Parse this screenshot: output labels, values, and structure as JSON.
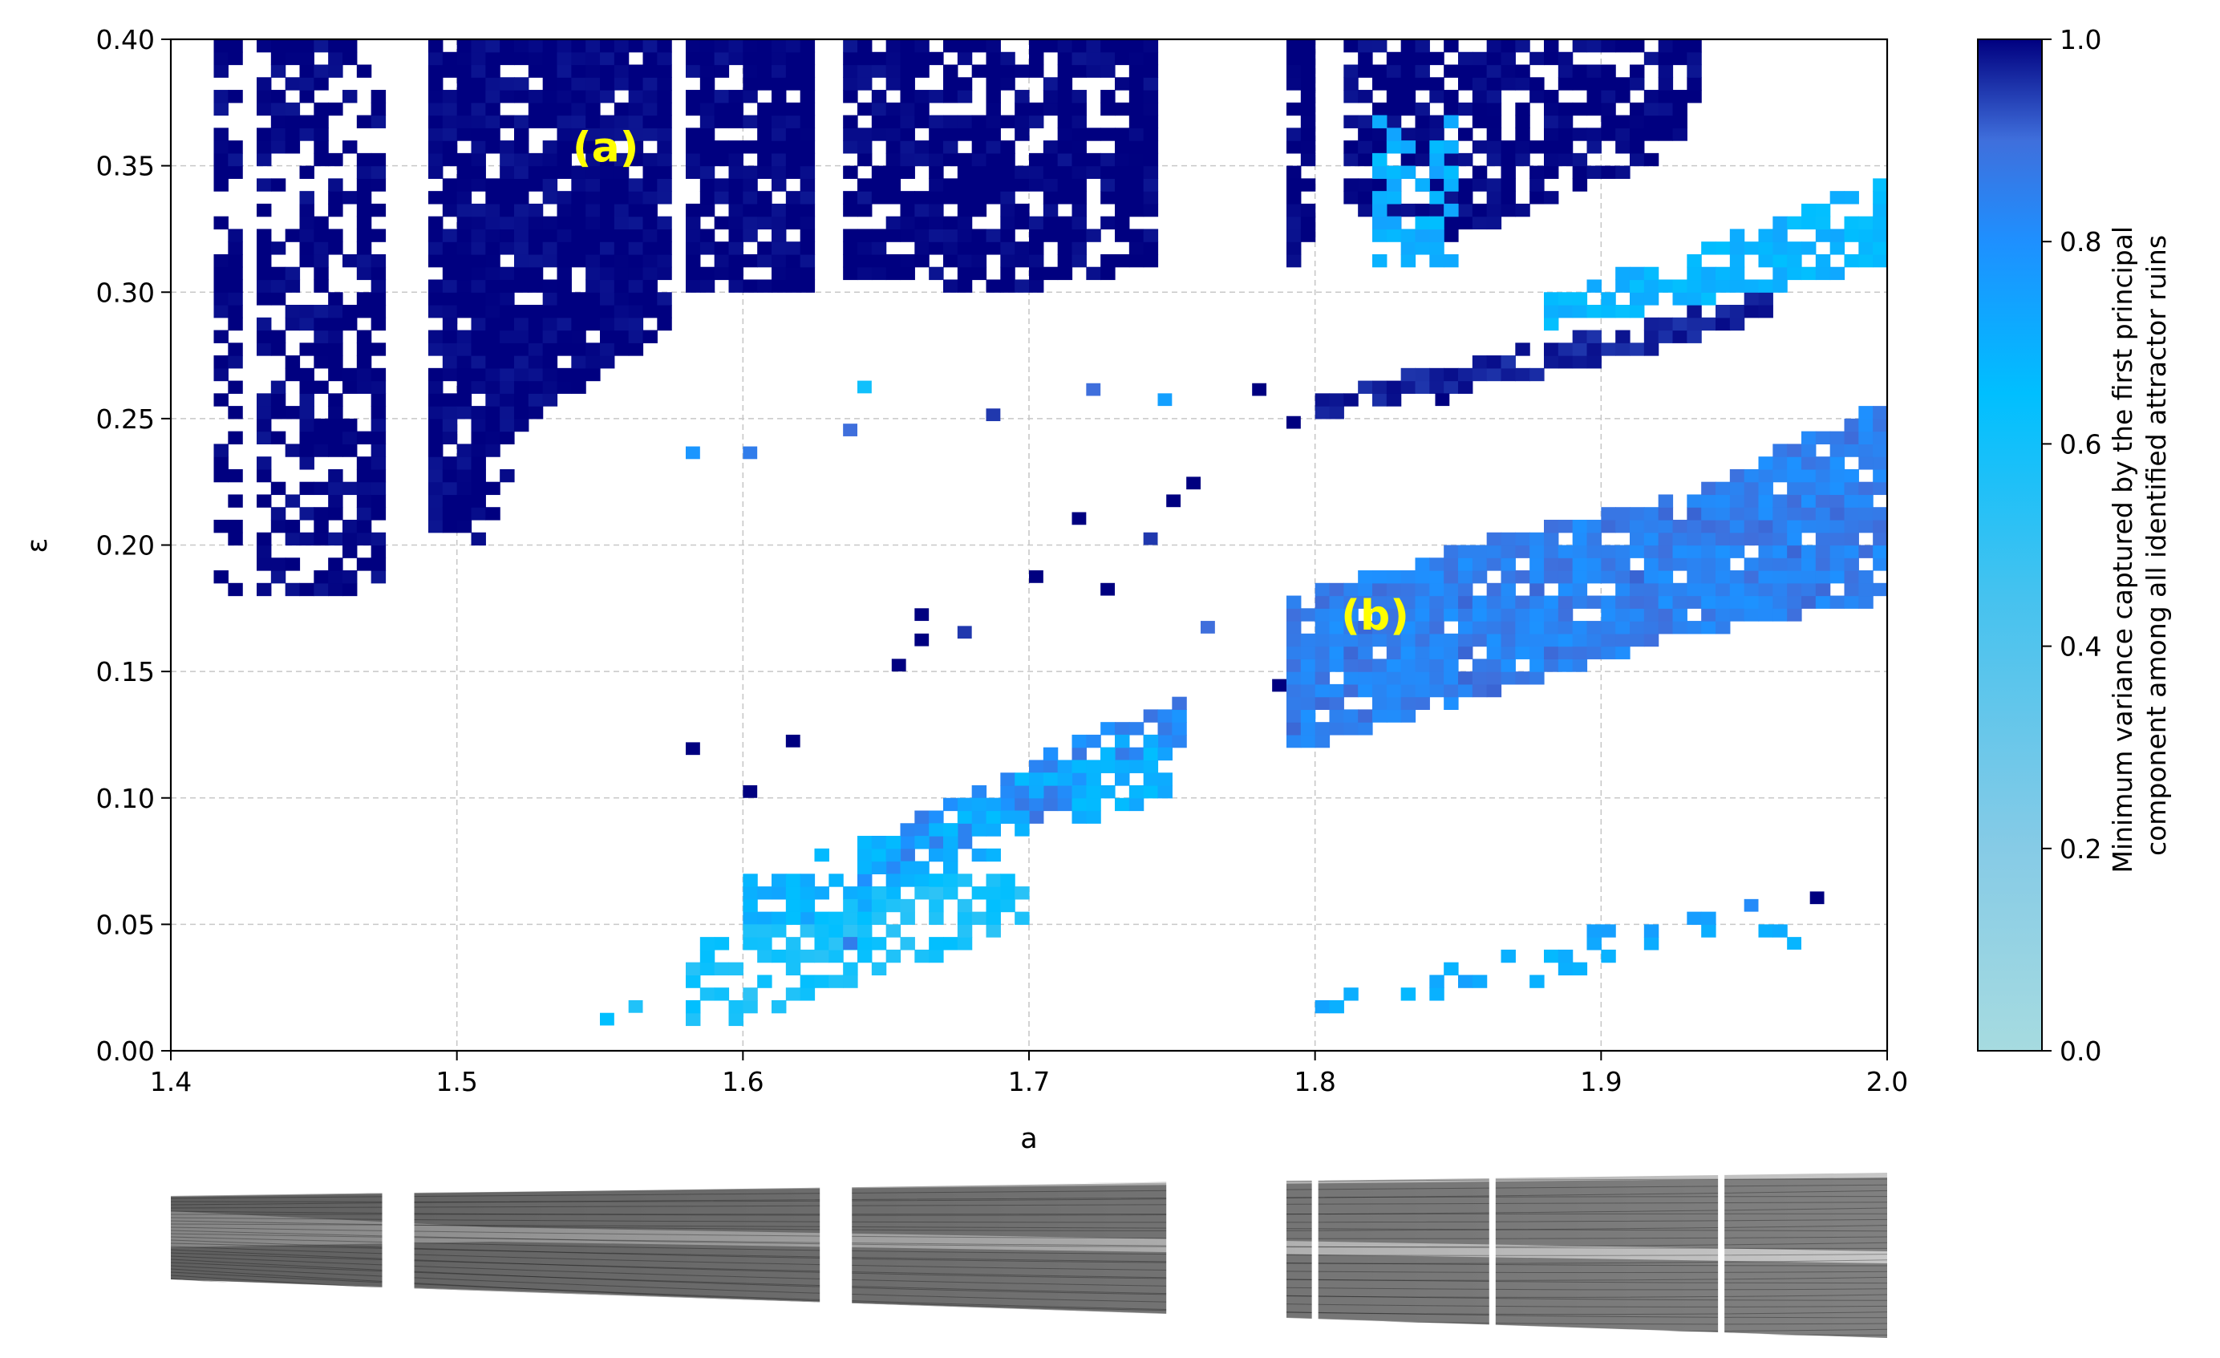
{
  "chart_data": [
    {
      "type": "heatmap",
      "title": "",
      "xlabel": "a",
      "ylabel": "ε",
      "xlim": [
        1.4,
        2.0
      ],
      "ylim": [
        0.0,
        0.4
      ],
      "xticks": [
        "1.4",
        "1.5",
        "1.6",
        "1.7",
        "1.8",
        "1.9",
        "2.0"
      ],
      "yticks": [
        "0.00",
        "0.05",
        "0.10",
        "0.15",
        "0.20",
        "0.25",
        "0.30",
        "0.35",
        "0.40"
      ],
      "grid": true,
      "grid_spacing": {
        "x": 0.1,
        "y": 0.05
      },
      "cell_size": {
        "da": 0.005,
        "de": 0.005
      },
      "value_range": [
        0.0,
        1.0
      ],
      "colormap": [
        "#a6dbe0",
        "#60c7ec",
        "#00bfff",
        "#1e90ff",
        "#3f6fdc",
        "#000080"
      ],
      "colorbar": {
        "label_line1": "Minimum variance captured by the first principal",
        "label_line2": "component among all identified attractor ruins",
        "ticks": [
          "0.0",
          "0.2",
          "0.4",
          "0.6",
          "0.8",
          "1.0"
        ],
        "placement": "right"
      },
      "annotations": [
        {
          "text": "(a)",
          "a": 1.552,
          "eps": 0.356,
          "color": "#ffff00"
        },
        {
          "text": "(b)",
          "a": 1.821,
          "eps": 0.171,
          "color": "#ffff00"
        }
      ],
      "regions": [
        {
          "name": "dark-stripe-1",
          "value": 1.0,
          "poly": [
            [
              1.415,
              0.4
            ],
            [
              1.425,
              0.4
            ],
            [
              1.425,
              0.18
            ],
            [
              1.415,
              0.18
            ]
          ],
          "density": 0.6
        },
        {
          "name": "dark-stripe-2",
          "value": 1.0,
          "poly": [
            [
              1.43,
              0.4
            ],
            [
              1.475,
              0.4
            ],
            [
              1.475,
              0.18
            ],
            [
              1.43,
              0.18
            ]
          ],
          "density": 0.62
        },
        {
          "name": "dark-block-3",
          "value": 1.0,
          "poly": [
            [
              1.49,
              0.4
            ],
            [
              1.575,
              0.4
            ],
            [
              1.575,
              0.285
            ],
            [
              1.525,
              0.25
            ],
            [
              1.51,
              0.2
            ],
            [
              1.49,
              0.2
            ]
          ],
          "density": 0.88
        },
        {
          "name": "dark-block-4",
          "value": 1.0,
          "poly": [
            [
              1.58,
              0.4
            ],
            [
              1.625,
              0.4
            ],
            [
              1.625,
              0.3
            ],
            [
              1.58,
              0.3
            ]
          ],
          "density": 0.85
        },
        {
          "name": "dark-block-5",
          "value": 1.0,
          "poly": [
            [
              1.635,
              0.4
            ],
            [
              1.745,
              0.4
            ],
            [
              1.745,
              0.31
            ],
            [
              1.7,
              0.3
            ],
            [
              1.635,
              0.305
            ]
          ],
          "density": 0.8
        },
        {
          "name": "dark-stripe-6",
          "value": 1.0,
          "poly": [
            [
              1.79,
              0.4
            ],
            [
              1.8,
              0.4
            ],
            [
              1.8,
              0.31
            ],
            [
              1.79,
              0.31
            ]
          ],
          "density": 0.75
        },
        {
          "name": "dark-block-7",
          "value": 1.0,
          "poly": [
            [
              1.81,
              0.4
            ],
            [
              1.935,
              0.4
            ],
            [
              1.935,
              0.36
            ],
            [
              1.85,
              0.32
            ],
            [
              1.81,
              0.33
            ]
          ],
          "density": 0.7
        },
        {
          "name": "dark-diagonal-8",
          "value": 0.97,
          "poly": [
            [
              1.8,
              0.26
            ],
            [
              1.9,
              0.285
            ],
            [
              1.96,
              0.3
            ],
            [
              1.96,
              0.29
            ],
            [
              1.9,
              0.272
            ],
            [
              1.8,
              0.25
            ]
          ],
          "density": 0.85
        },
        {
          "name": "blue-band-b",
          "value": 0.84,
          "poly": [
            [
              1.79,
              0.18
            ],
            [
              1.85,
              0.2
            ],
            [
              1.93,
              0.22
            ],
            [
              2.0,
              0.258
            ],
            [
              2.0,
              0.178
            ],
            [
              1.93,
              0.165
            ],
            [
              1.86,
              0.14
            ],
            [
              1.79,
              0.118
            ]
          ],
          "density": 0.92
        },
        {
          "name": "cyan-band",
          "value": 0.6,
          "poly": [
            [
              1.88,
              0.3
            ],
            [
              1.94,
              0.32
            ],
            [
              2.0,
              0.345
            ],
            [
              2.0,
              0.31
            ],
            [
              1.95,
              0.3
            ],
            [
              1.88,
              0.285
            ]
          ],
          "density": 0.75
        },
        {
          "name": "cyan-cluster-top",
          "value": 0.62,
          "poly": [
            [
              1.82,
              0.37
            ],
            [
              1.85,
              0.37
            ],
            [
              1.85,
              0.31
            ],
            [
              1.82,
              0.31
            ]
          ],
          "density": 0.55
        },
        {
          "name": "blue-diagonal-mid",
          "value": 0.82,
          "poly": [
            [
              1.64,
              0.08
            ],
            [
              1.72,
              0.125
            ],
            [
              1.755,
              0.14
            ],
            [
              1.755,
              0.12
            ],
            [
              1.72,
              0.1
            ],
            [
              1.64,
              0.065
            ]
          ],
          "density": 0.8
        },
        {
          "name": "cyan-mid-band",
          "value": 0.62,
          "poly": [
            [
              1.6,
              0.07
            ],
            [
              1.66,
              0.09
            ],
            [
              1.7,
              0.11
            ],
            [
              1.75,
              0.13
            ],
            [
              1.75,
              0.1
            ],
            [
              1.7,
              0.085
            ],
            [
              1.66,
              0.06
            ],
            [
              1.6,
              0.045
            ]
          ],
          "density": 0.6
        },
        {
          "name": "light-lower-band",
          "value": 0.48,
          "poly": [
            [
              1.58,
              0.04
            ],
            [
              1.65,
              0.065
            ],
            [
              1.7,
              0.075
            ],
            [
              1.7,
              0.05
            ],
            [
              1.65,
              0.03
            ],
            [
              1.6,
              0.01
            ],
            [
              1.58,
              0.01
            ]
          ],
          "density": 0.5
        },
        {
          "name": "sparse-right-bottom",
          "value": 0.65,
          "poly": [
            [
              1.8,
              0.02
            ],
            [
              1.9,
              0.05
            ],
            [
              1.98,
              0.06
            ],
            [
              1.98,
              0.05
            ],
            [
              1.9,
              0.035
            ],
            [
              1.8,
              0.0
            ]
          ],
          "density": 0.3
        }
      ],
      "points": [
        {
          "a": 1.58,
          "eps": 0.234,
          "v": 0.75
        },
        {
          "a": 1.6,
          "eps": 0.234,
          "v": 0.85
        },
        {
          "a": 1.635,
          "eps": 0.243,
          "v": 0.9
        },
        {
          "a": 1.64,
          "eps": 0.26,
          "v": 0.5
        },
        {
          "a": 1.685,
          "eps": 0.249,
          "v": 0.95
        },
        {
          "a": 1.72,
          "eps": 0.259,
          "v": 0.9
        },
        {
          "a": 1.745,
          "eps": 0.255,
          "v": 0.7
        },
        {
          "a": 1.778,
          "eps": 0.259,
          "v": 1.0
        },
        {
          "a": 1.79,
          "eps": 0.246,
          "v": 1.0
        },
        {
          "a": 1.842,
          "eps": 0.255,
          "v": 1.0
        },
        {
          "a": 1.715,
          "eps": 0.208,
          "v": 1.0
        },
        {
          "a": 1.74,
          "eps": 0.2,
          "v": 0.95
        },
        {
          "a": 1.748,
          "eps": 0.215,
          "v": 1.0
        },
        {
          "a": 1.755,
          "eps": 0.222,
          "v": 1.0
        },
        {
          "a": 1.7,
          "eps": 0.185,
          "v": 1.0
        },
        {
          "a": 1.725,
          "eps": 0.18,
          "v": 1.0
        },
        {
          "a": 1.66,
          "eps": 0.17,
          "v": 1.0
        },
        {
          "a": 1.675,
          "eps": 0.163,
          "v": 0.95
        },
        {
          "a": 1.66,
          "eps": 0.16,
          "v": 1.0
        },
        {
          "a": 1.652,
          "eps": 0.15,
          "v": 1.0
        },
        {
          "a": 1.76,
          "eps": 0.165,
          "v": 0.9
        },
        {
          "a": 1.785,
          "eps": 0.142,
          "v": 1.0
        },
        {
          "a": 1.58,
          "eps": 0.117,
          "v": 1.0
        },
        {
          "a": 1.6,
          "eps": 0.1,
          "v": 1.0
        },
        {
          "a": 1.615,
          "eps": 0.12,
          "v": 1.0
        },
        {
          "a": 1.635,
          "eps": 0.04,
          "v": 0.85
        },
        {
          "a": 1.55,
          "eps": 0.01,
          "v": 0.55
        },
        {
          "a": 1.56,
          "eps": 0.015,
          "v": 0.45
        },
        {
          "a": 1.95,
          "eps": 0.055,
          "v": 0.8
        },
        {
          "a": 1.973,
          "eps": 0.058,
          "v": 1.0
        },
        {
          "a": 1.965,
          "eps": 0.04,
          "v": 0.6
        }
      ]
    },
    {
      "type": "bifurcation-diagram",
      "xlim": [
        1.4,
        2.0
      ],
      "branches": 2,
      "white_gaps": [
        1.475,
        1.628,
        1.748,
        1.76,
        1.8,
        1.862,
        1.942
      ]
    }
  ]
}
